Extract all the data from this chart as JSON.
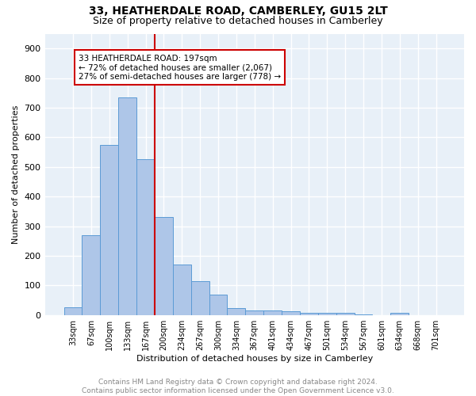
{
  "title1": "33, HEATHERDALE ROAD, CAMBERLEY, GU15 2LT",
  "title2": "Size of property relative to detached houses in Camberley",
  "xlabel": "Distribution of detached houses by size in Camberley",
  "ylabel": "Number of detached properties",
  "footer1": "Contains HM Land Registry data © Crown copyright and database right 2024.",
  "footer2": "Contains public sector information licensed under the Open Government Licence v3.0.",
  "bar_labels": [
    "33sqm",
    "67sqm",
    "100sqm",
    "133sqm",
    "167sqm",
    "200sqm",
    "234sqm",
    "267sqm",
    "300sqm",
    "334sqm",
    "367sqm",
    "401sqm",
    "434sqm",
    "467sqm",
    "501sqm",
    "534sqm",
    "567sqm",
    "601sqm",
    "634sqm",
    "668sqm",
    "701sqm"
  ],
  "bar_values": [
    25,
    270,
    575,
    735,
    525,
    330,
    170,
    115,
    68,
    22,
    15,
    15,
    13,
    8,
    7,
    7,
    3,
    0,
    8,
    0,
    0
  ],
  "bar_color": "#aec6e8",
  "bar_edge_color": "#5b9bd5",
  "vline_color": "#cc0000",
  "annotation_text": "33 HEATHERDALE ROAD: 197sqm\n← 72% of detached houses are smaller (2,067)\n27% of semi-detached houses are larger (778) →",
  "annotation_box_color": "#cc0000",
  "ylim": [
    0,
    950
  ],
  "yticks": [
    0,
    100,
    200,
    300,
    400,
    500,
    600,
    700,
    800,
    900
  ],
  "background_color": "#e8f0f8",
  "grid_color": "#ffffff",
  "title1_fontsize": 10,
  "title2_fontsize": 9,
  "annotation_fontsize": 7.5,
  "footer_fontsize": 6.5,
  "ylabel_fontsize": 8,
  "xlabel_fontsize": 8
}
